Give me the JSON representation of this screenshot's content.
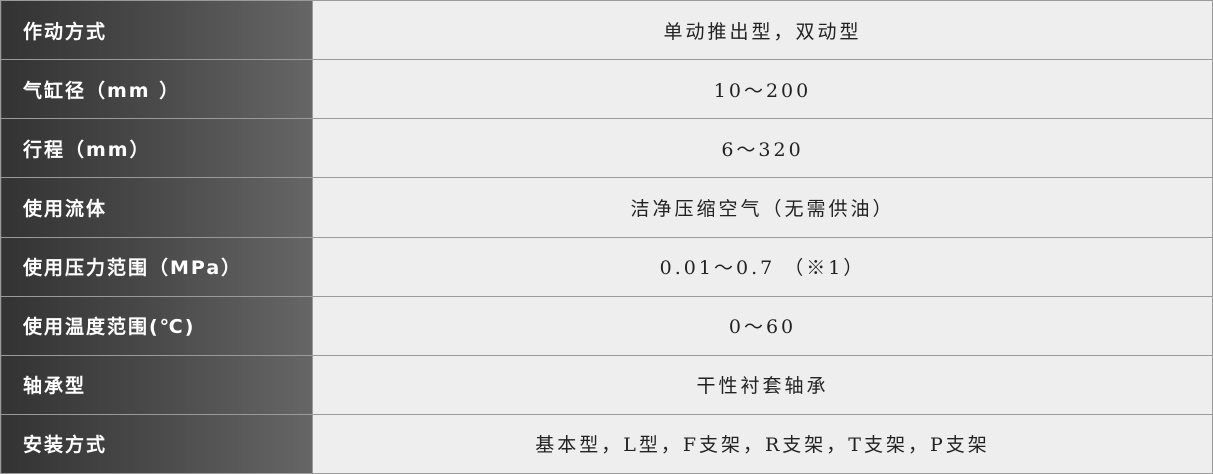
{
  "spec_table": {
    "rows": [
      {
        "label": "作动方式",
        "value": "单动推出型，双动型"
      },
      {
        "label": "气缸径（mm ）",
        "value": "10～200"
      },
      {
        "label": "行程（mm）",
        "value": "6～320"
      },
      {
        "label": "使用流体",
        "value": "洁净压缩空气（无需供油）"
      },
      {
        "label": "使用压力范围（MPa）",
        "value": "0.01～0.7 （※1）"
      },
      {
        "label": "使用温度范围(℃)",
        "value": "0～60"
      },
      {
        "label": "轴承型",
        "value": "干性衬套轴承"
      },
      {
        "label": "安装方式",
        "value": "基本型，L型，F支架，R支架，T支架，P支架"
      }
    ]
  }
}
